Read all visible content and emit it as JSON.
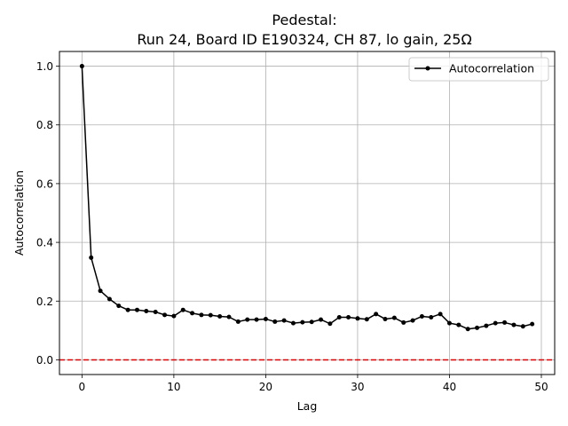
{
  "chart_data": {
    "type": "line",
    "title": "Pedestal:",
    "subtitle": "Run 24, Board ID E190324, CH 87, lo gain, 25Ω",
    "xlabel": "Lag",
    "ylabel": "Autocorrelation",
    "xlim": [
      -2.45,
      51.45
    ],
    "ylim": [
      -0.05,
      1.05
    ],
    "xticks": [
      0,
      10,
      20,
      30,
      40,
      50
    ],
    "yticks": [
      0.0,
      0.2,
      0.4,
      0.6,
      0.8,
      1.0
    ],
    "xtick_labels": [
      "0",
      "10",
      "20",
      "30",
      "40",
      "50"
    ],
    "ytick_labels": [
      "0.0",
      "0.2",
      "0.4",
      "0.6",
      "0.8",
      "1.0"
    ],
    "grid": true,
    "legend_position": "top-right",
    "series": [
      {
        "name": "Autocorrelation",
        "color": "#000000",
        "marker": "circle",
        "x": [
          0,
          1,
          2,
          3,
          4,
          5,
          6,
          7,
          8,
          9,
          10,
          11,
          12,
          13,
          14,
          15,
          16,
          17,
          18,
          19,
          20,
          21,
          22,
          23,
          24,
          25,
          26,
          27,
          28,
          29,
          30,
          31,
          32,
          33,
          34,
          35,
          36,
          37,
          38,
          39,
          40,
          41,
          42,
          43,
          44,
          45,
          46,
          47,
          48,
          49
        ],
        "values": [
          1.0,
          0.348,
          0.235,
          0.207,
          0.184,
          0.17,
          0.17,
          0.166,
          0.163,
          0.153,
          0.149,
          0.17,
          0.159,
          0.153,
          0.152,
          0.148,
          0.146,
          0.13,
          0.137,
          0.137,
          0.139,
          0.13,
          0.134,
          0.125,
          0.128,
          0.129,
          0.137,
          0.123,
          0.145,
          0.145,
          0.141,
          0.138,
          0.156,
          0.139,
          0.143,
          0.127,
          0.134,
          0.148,
          0.145,
          0.156,
          0.125,
          0.119,
          0.105,
          0.109,
          0.116,
          0.125,
          0.127,
          0.119,
          0.114,
          0.122
        ]
      }
    ],
    "reference_line": {
      "y": 0.0,
      "color": "#e00000",
      "style": "dashed"
    }
  }
}
